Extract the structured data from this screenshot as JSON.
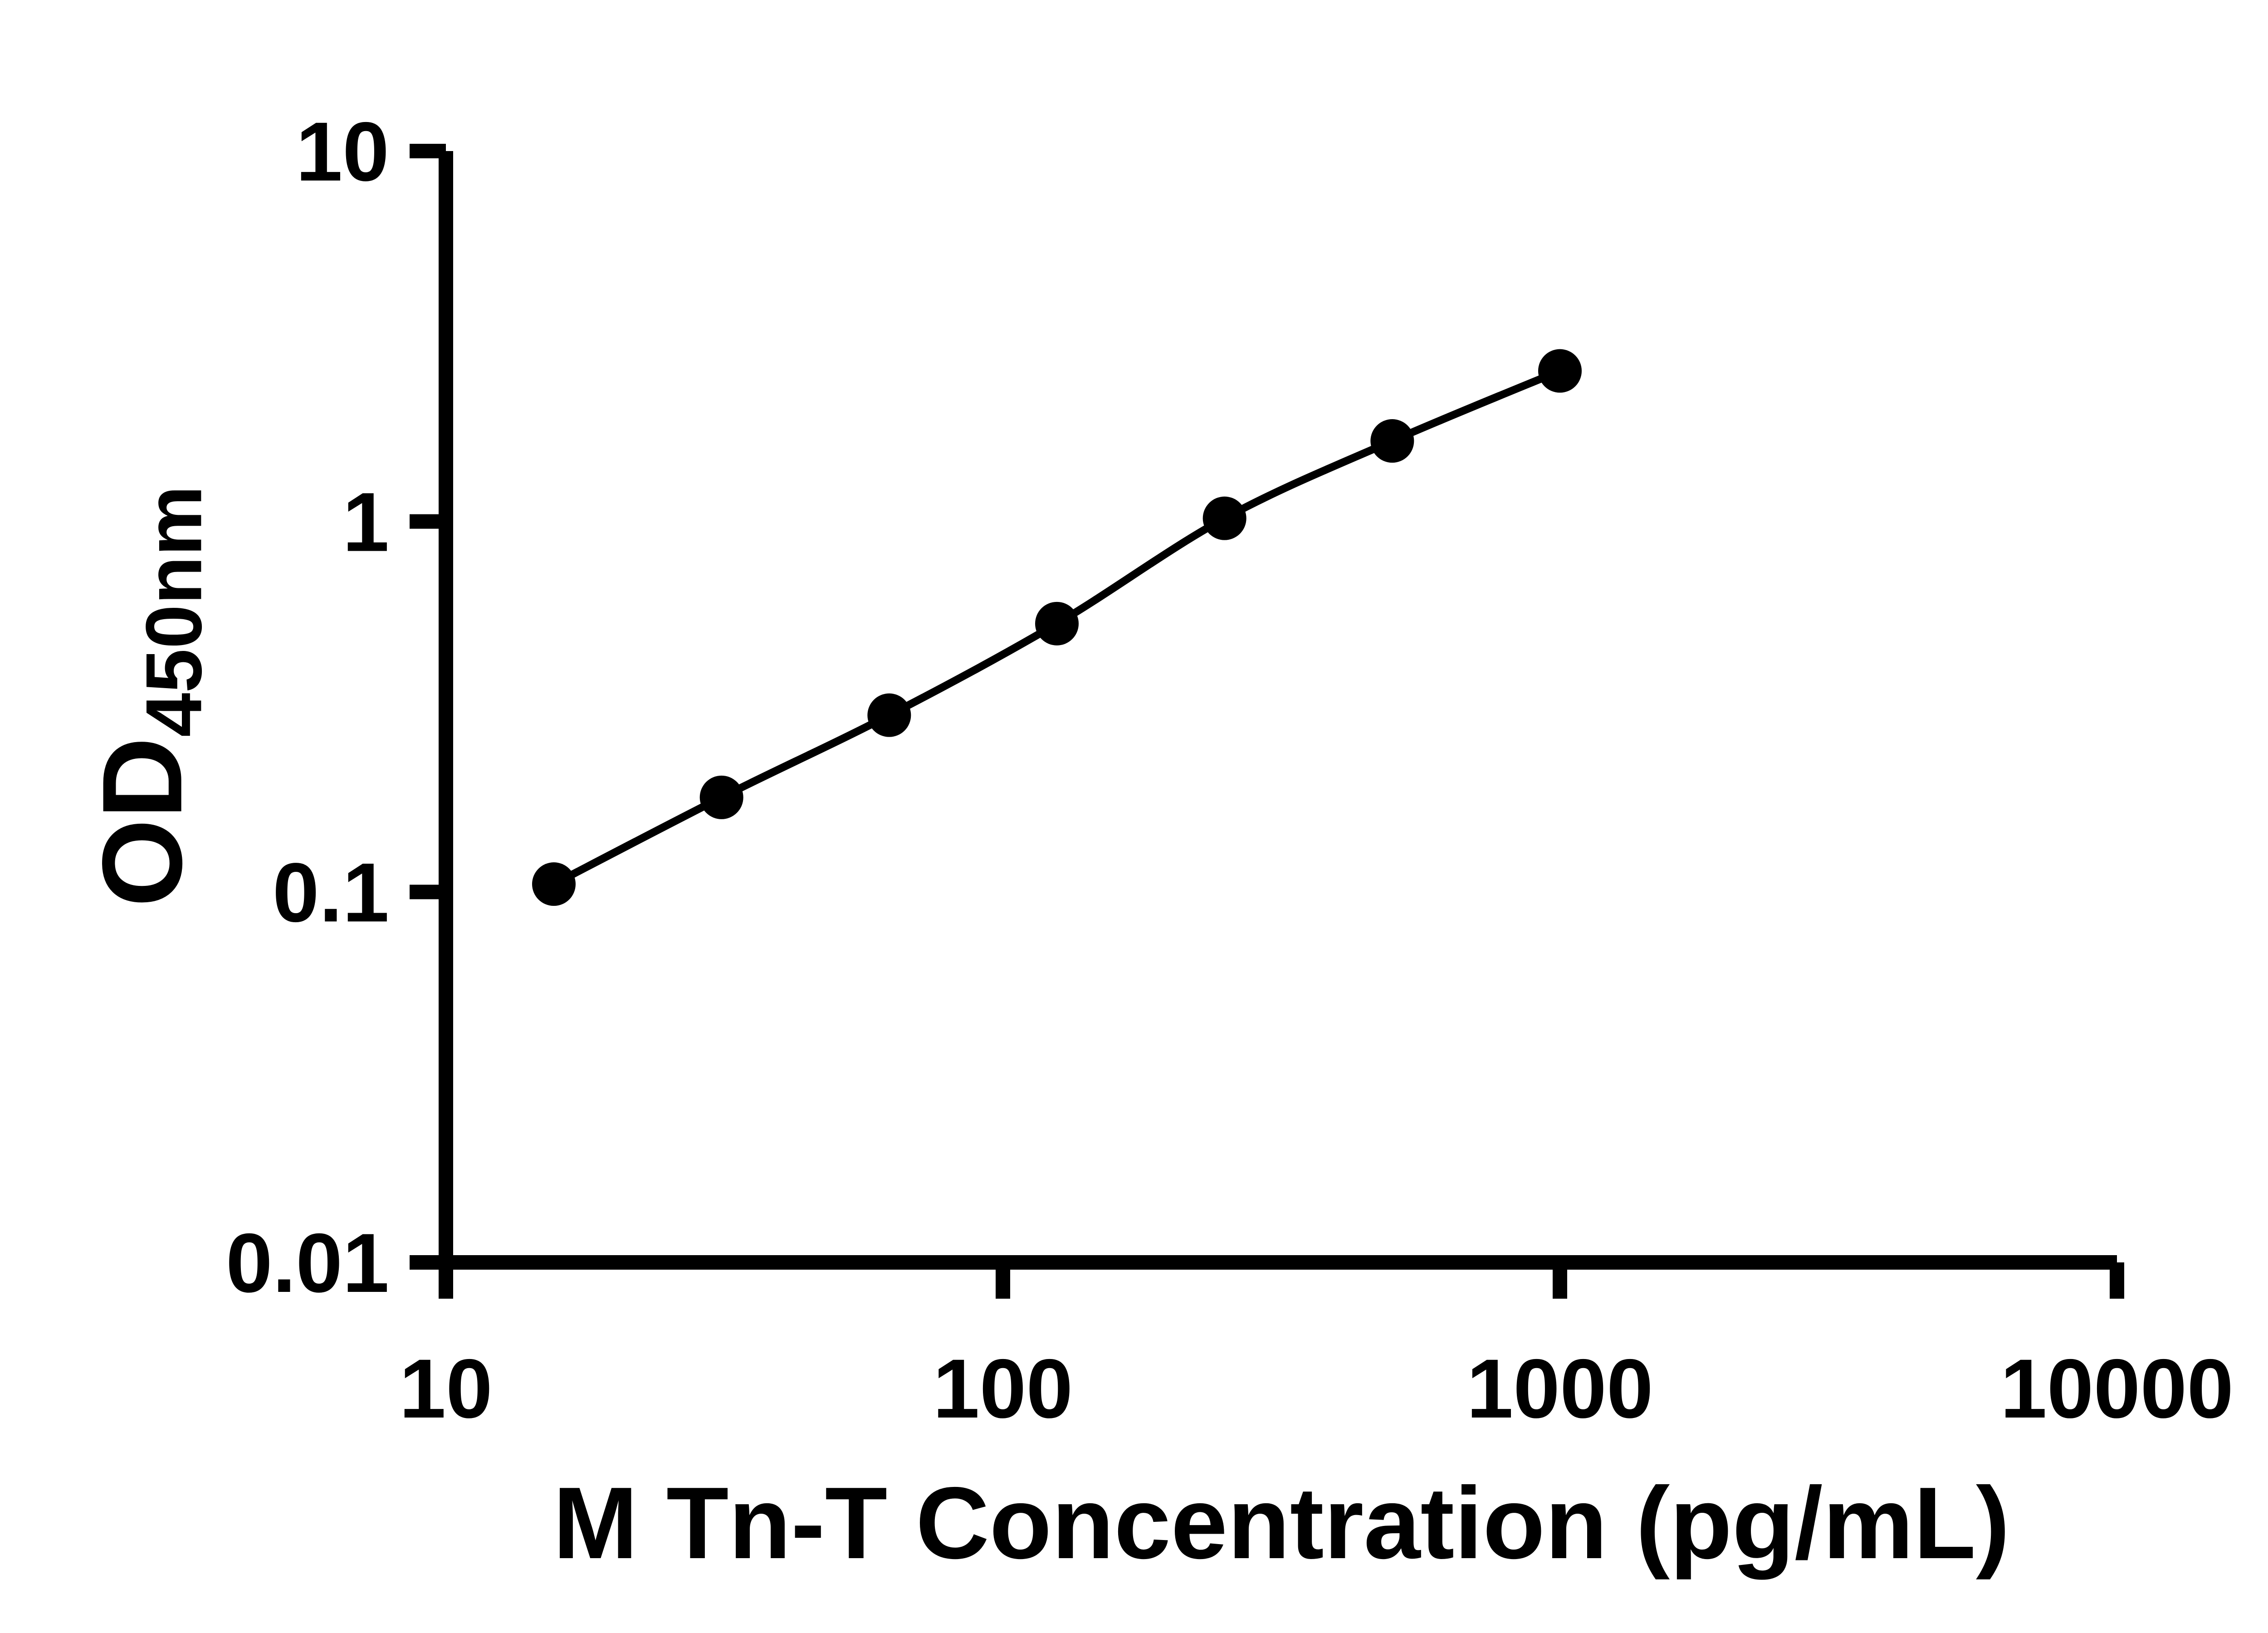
{
  "figure": {
    "background": "#ffffff"
  },
  "chart_data": {
    "type": "line",
    "x": [
      15.625,
      31.25,
      62.5,
      125,
      250,
      500,
      1000
    ],
    "y": [
      0.105,
      0.18,
      0.3,
      0.53,
      1.02,
      1.65,
      2.55
    ],
    "xlabel": "M Tn-T Concentration (pg/mL)",
    "ylabel_main": "OD",
    "ylabel_sub": "450nm",
    "x_scale": "log10",
    "y_scale": "log10",
    "xlim": [
      10,
      10000
    ],
    "ylim": [
      0.01,
      10
    ],
    "x_ticks": [
      10,
      100,
      1000,
      10000
    ],
    "x_tick_labels": [
      "10",
      "100",
      "1000",
      "10000"
    ],
    "y_ticks": [
      0.01,
      0.1,
      1,
      10
    ],
    "y_tick_labels": [
      "0.01",
      "0.1",
      "1",
      "10"
    ],
    "grid": false,
    "legend": "none",
    "marker": "circle",
    "marker_color": "#000000",
    "line_color": "#000000",
    "axis_color": "#000000",
    "text_color": "#000000"
  }
}
